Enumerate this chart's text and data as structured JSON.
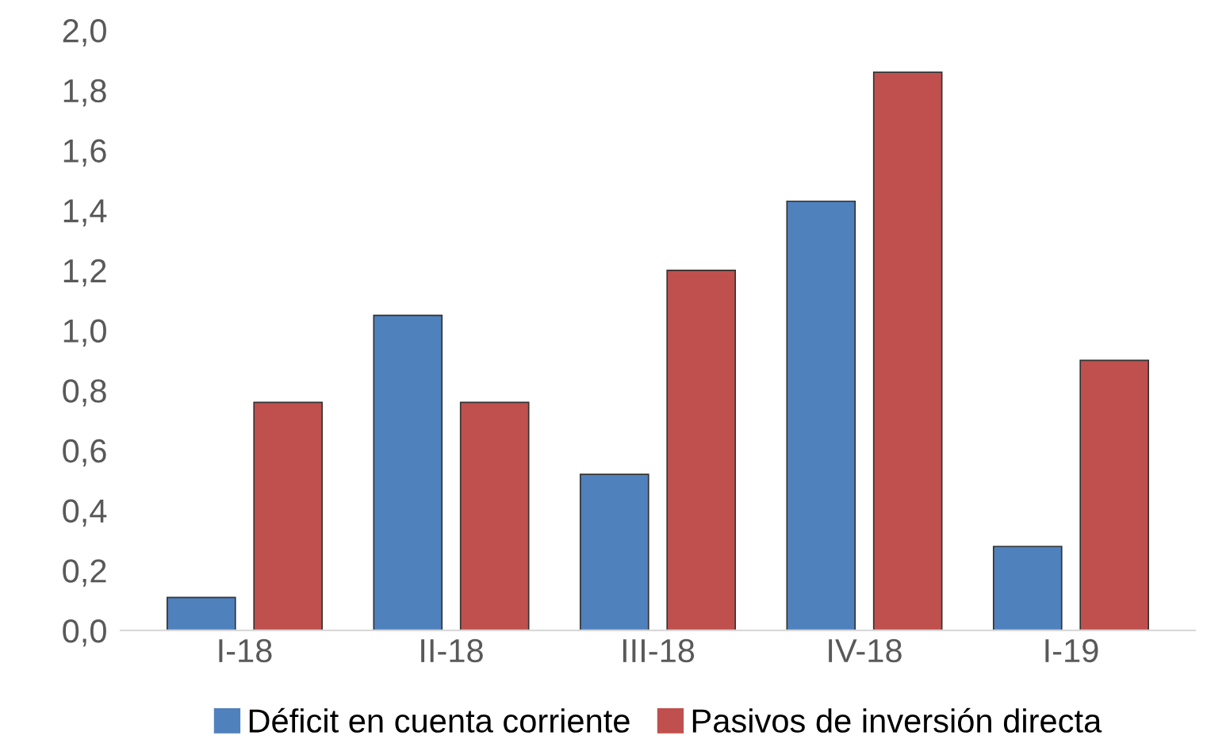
{
  "chart_data": {
    "type": "bar",
    "categories": [
      "I-18",
      "II-18",
      "III-18",
      "IV-18",
      "I-19"
    ],
    "series": [
      {
        "name": "Déficit en cuenta corriente",
        "color": "#4f81bd",
        "values": [
          0.11,
          1.05,
          0.52,
          1.43,
          0.28
        ]
      },
      {
        "name": "Pasivos de inversión directa",
        "color": "#c0504d",
        "values": [
          0.76,
          0.76,
          1.2,
          1.86,
          0.9
        ]
      }
    ],
    "ylim": [
      0,
      2
    ],
    "yticks": [
      {
        "value": 0,
        "label": "0,0"
      },
      {
        "value": 0.2,
        "label": "0,2"
      },
      {
        "value": 0.4,
        "label": "0,4"
      },
      {
        "value": 0.6,
        "label": "0,6"
      },
      {
        "value": 0.8,
        "label": "0,8"
      },
      {
        "value": 1.0,
        "label": "1,0"
      },
      {
        "value": 1.2,
        "label": "1,2"
      },
      {
        "value": 1.4,
        "label": "1,4"
      },
      {
        "value": 1.6,
        "label": "1,6"
      },
      {
        "value": 1.8,
        "label": "1,8"
      },
      {
        "value": 2.0,
        "label": "2,0"
      }
    ],
    "grid": false,
    "legend": "bottom"
  }
}
